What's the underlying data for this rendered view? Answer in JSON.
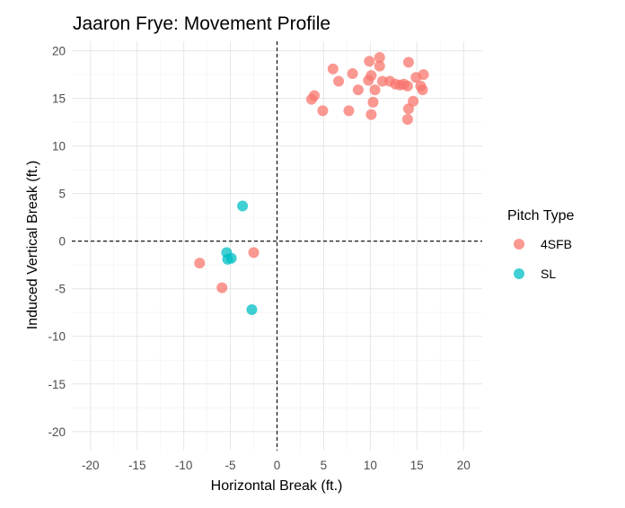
{
  "chart_data": {
    "type": "scatter",
    "title": "Jaaron Frye: Movement Profile",
    "xlabel": "Horizontal Break (ft.)",
    "ylabel": "Induced Vertical Break (ft.)",
    "xlim": [
      -22,
      22
    ],
    "ylim": [
      -22,
      21
    ],
    "xticks": [
      -20,
      -15,
      -10,
      -5,
      0,
      5,
      10,
      15,
      20
    ],
    "yticks": [
      -20,
      -15,
      -10,
      -5,
      0,
      5,
      10,
      15,
      20
    ],
    "grid": true,
    "reference_lines": {
      "x": 0,
      "y": 0,
      "style": "dashed"
    },
    "legend": {
      "title": "Pitch Type",
      "position": "right"
    },
    "series": [
      {
        "name": "4SFB",
        "color": "#F8766D",
        "points": [
          [
            4.0,
            15.3
          ],
          [
            3.7,
            14.9
          ],
          [
            4.9,
            13.7
          ],
          [
            6.0,
            18.1
          ],
          [
            6.6,
            16.8
          ],
          [
            8.1,
            17.6
          ],
          [
            8.7,
            15.9
          ],
          [
            7.7,
            13.7
          ],
          [
            9.9,
            18.9
          ],
          [
            10.1,
            17.4
          ],
          [
            9.8,
            16.9
          ],
          [
            10.5,
            15.9
          ],
          [
            10.3,
            14.6
          ],
          [
            10.1,
            13.3
          ],
          [
            11.0,
            19.3
          ],
          [
            11.0,
            18.4
          ],
          [
            11.3,
            16.8
          ],
          [
            12.1,
            16.8
          ],
          [
            12.7,
            16.5
          ],
          [
            13.2,
            16.4
          ],
          [
            13.6,
            16.5
          ],
          [
            14.0,
            16.3
          ],
          [
            14.1,
            18.8
          ],
          [
            14.9,
            17.2
          ],
          [
            15.4,
            16.3
          ],
          [
            15.6,
            15.9
          ],
          [
            15.7,
            17.5
          ],
          [
            14.6,
            14.7
          ],
          [
            14.1,
            13.9
          ],
          [
            14.0,
            12.8
          ],
          [
            -8.3,
            -2.3
          ],
          [
            -5.9,
            -4.9
          ],
          [
            -2.5,
            -1.2
          ]
        ]
      },
      {
        "name": "SL",
        "color": "#00BFC4",
        "points": [
          [
            -3.7,
            3.7
          ],
          [
            -5.4,
            -1.2
          ],
          [
            -5.3,
            -1.9
          ],
          [
            -4.9,
            -1.8
          ],
          [
            -2.7,
            -7.2
          ]
        ]
      }
    ]
  }
}
